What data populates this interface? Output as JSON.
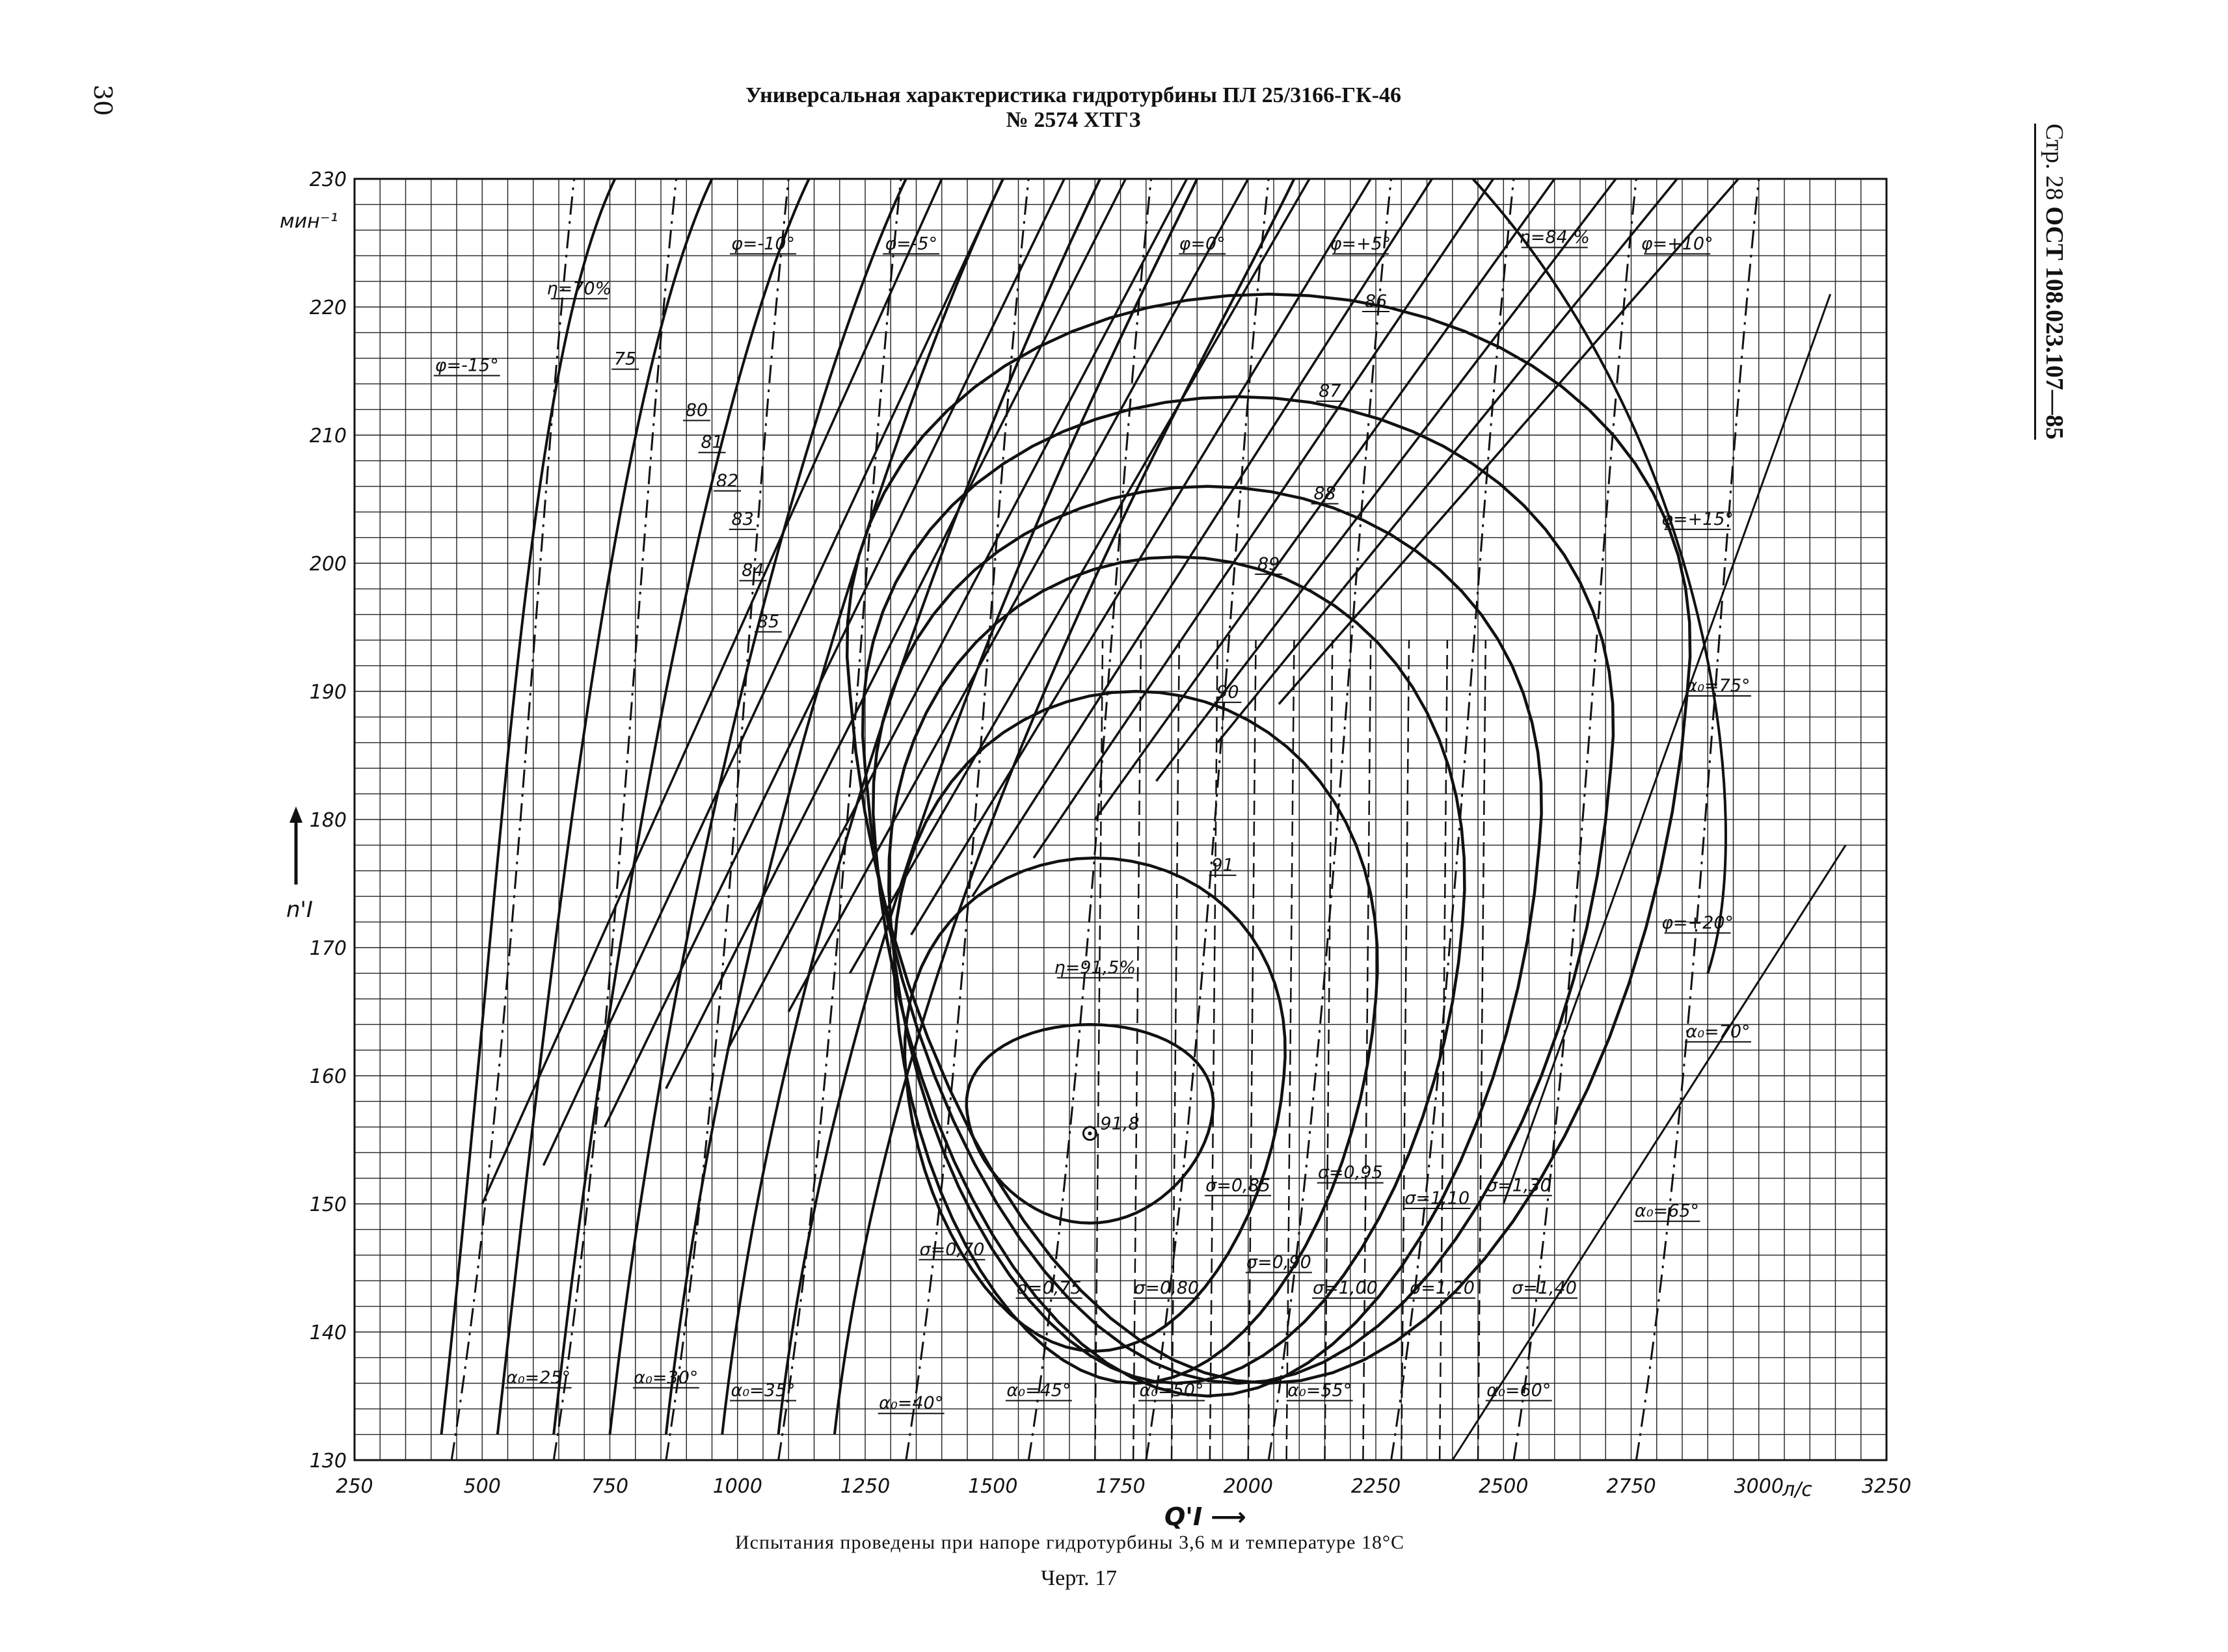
{
  "page_number": "30",
  "title_line1": "Универсальная характеристика гидротурбины ПЛ 25/3166-ГК-46",
  "title_line2": "№ 2574 ХТГЗ",
  "side_label_prefix": "Стр. 28",
  "side_label_standard": "ОСТ 108.023.107—85",
  "footnote": "Испытания проведены при напоре гидротурбины 3,6 м и температуре 18°С",
  "figure_label": "Черт. 17",
  "chart_data": {
    "type": "line",
    "title": "Универсальная характеристика гидротурбины ПЛ 25/3166-ГК-46",
    "xlabel": "Q'I",
    "ylabel": "n'I",
    "yunit": "мин⁻¹",
    "xunit": "л/с",
    "xlim": [
      250,
      3250
    ],
    "ylim": [
      130,
      230
    ],
    "grid": true,
    "x_ticks": [
      {
        "v": 250,
        "t": "250"
      },
      {
        "v": 500,
        "t": "500"
      },
      {
        "v": 750,
        "t": "750"
      },
      {
        "v": 1000,
        "t": "1000"
      },
      {
        "v": 1250,
        "t": "1250"
      },
      {
        "v": 1500,
        "t": "1500"
      },
      {
        "v": 1750,
        "t": "1750"
      },
      {
        "v": 2000,
        "t": "2000"
      },
      {
        "v": 2250,
        "t": "2250"
      },
      {
        "v": 2500,
        "t": "2500"
      },
      {
        "v": 2750,
        "t": "2750"
      },
      {
        "v": 3000,
        "t": "3000"
      },
      {
        "v": 3250,
        "t": "3250"
      }
    ],
    "y_ticks": [
      {
        "v": 130,
        "t": "130"
      },
      {
        "v": 140,
        "t": "140"
      },
      {
        "v": 150,
        "t": "150"
      },
      {
        "v": 160,
        "t": "160"
      },
      {
        "v": 170,
        "t": "170"
      },
      {
        "v": 180,
        "t": "180"
      },
      {
        "v": 190,
        "t": "190"
      },
      {
        "v": 200,
        "t": "200"
      },
      {
        "v": 210,
        "t": "210"
      },
      {
        "v": 220,
        "t": "220"
      },
      {
        "v": 230,
        "t": "230"
      }
    ],
    "optimum_point": {
      "x": 1690,
      "y": 155.5,
      "label": "91,8"
    },
    "efficiency_contours": [
      {
        "label": "η=91,5%",
        "cx": 1690,
        "cy": 157,
        "rx": 240,
        "ryTop": 7,
        "ryBot": 8.5,
        "tag": [
          1700,
          168
        ]
      },
      {
        "label": "91",
        "cx": 1700,
        "cy": 160,
        "rx": 370,
        "ryTop": 17,
        "ryBot": 21.5,
        "tag": [
          1950,
          176
        ]
      },
      {
        "label": "90",
        "cx": 1780,
        "cy": 166,
        "rx": 470,
        "ryTop": 24,
        "ryBot": 30,
        "tag": [
          1960,
          189.5
        ]
      },
      {
        "label": "89",
        "cx": 1860,
        "cy": 172,
        "rx": 560,
        "ryTop": 28.5,
        "ryBot": 36,
        "tag": [
          2040,
          199.5
        ]
      },
      {
        "label": "88",
        "cx": 1920,
        "cy": 178,
        "rx": 650,
        "ryTop": 28,
        "ryBot": 43,
        "tag": [
          2150,
          205
        ]
      },
      {
        "label": "87",
        "cx": 1980,
        "cy": 184,
        "rx": 730,
        "ryTop": 29,
        "ryBot": 48,
        "tag": [
          2160,
          213
        ]
      },
      {
        "label": "86",
        "cx": 2040,
        "cy": 190,
        "rx": 820,
        "ryTop": 31,
        "ryBot": 54,
        "tag": [
          2250,
          220
        ]
      }
    ],
    "efficiency_open": [
      {
        "label": "η=84 %",
        "tag": [
          2600,
          225
        ]
      },
      {
        "label": "85",
        "tag": [
          1060,
          195
        ]
      },
      {
        "label": "84",
        "tag": [
          1030,
          199
        ]
      },
      {
        "label": "83",
        "tag": [
          1010,
          203
        ]
      },
      {
        "label": "82",
        "tag": [
          980,
          206
        ]
      },
      {
        "label": "81",
        "tag": [
          950,
          209
        ]
      },
      {
        "label": "80",
        "tag": [
          920,
          211.5
        ]
      },
      {
        "label": "75",
        "tag": [
          780,
          215.5
        ]
      },
      {
        "label": "η=70%",
        "tag": [
          690,
          221
        ]
      }
    ],
    "blade_angle_lines": [
      {
        "label": "φ=-15°",
        "tag": [
          470,
          215
        ]
      },
      {
        "label": "φ=-10°",
        "tag": [
          1050,
          224.5
        ]
      },
      {
        "label": "φ=-5°",
        "tag": [
          1340,
          224.5
        ]
      },
      {
        "label": "φ=0°",
        "tag": [
          1910,
          224.5
        ]
      },
      {
        "label": "φ=+5°",
        "tag": [
          2220,
          224.5
        ]
      },
      {
        "label": "φ=+10°",
        "tag": [
          2840,
          224.5
        ]
      },
      {
        "label": "φ=+15°",
        "tag": [
          2880,
          203
        ]
      },
      {
        "label": "φ=+20°",
        "tag": [
          2880,
          171.5
        ]
      }
    ],
    "guide_vane_lines": [
      {
        "label": "α₀=25°",
        "x": 560,
        "tag": [
          610,
          136
        ]
      },
      {
        "label": "α₀=30°",
        "x": 760,
        "tag": [
          860,
          136
        ]
      },
      {
        "label": "α₀=35°",
        "x": 980,
        "tag": [
          1050,
          135
        ]
      },
      {
        "label": "α₀=40°",
        "x": 1200,
        "tag": [
          1340,
          134
        ]
      },
      {
        "label": "α₀=45°",
        "x": 1450,
        "tag": [
          1590,
          135
        ]
      },
      {
        "label": "α₀=50°",
        "x": 1690,
        "tag": [
          1850,
          135
        ]
      },
      {
        "label": "α₀=55°",
        "x": 1920,
        "tag": [
          2140,
          135
        ]
      },
      {
        "label": "α₀=60°",
        "x": 2160,
        "tag": [
          2530,
          135
        ]
      },
      {
        "label": "α₀=65°",
        "x": 2400,
        "tag": [
          2820,
          149
        ]
      },
      {
        "label": "α₀=70°",
        "x": 2640,
        "tag": [
          2920,
          163
        ]
      },
      {
        "label": "α₀=75°",
        "x": 2880,
        "tag": [
          2920,
          190
        ]
      }
    ],
    "cavitation_labels": [
      {
        "label": "σ=0,70",
        "tag": [
          1420,
          146
        ]
      },
      {
        "label": "σ=0,75",
        "tag": [
          1610,
          143
        ]
      },
      {
        "label": "σ=0,80",
        "tag": [
          1840,
          143
        ]
      },
      {
        "label": "σ=0,85",
        "tag": [
          1980,
          151
        ]
      },
      {
        "label": "σ=0,90",
        "tag": [
          2060,
          145
        ]
      },
      {
        "label": "σ=0,95",
        "tag": [
          2200,
          152
        ]
      },
      {
        "label": "σ=1,00",
        "tag": [
          2190,
          143
        ]
      },
      {
        "label": "σ=1,10",
        "tag": [
          2370,
          150
        ]
      },
      {
        "label": "σ=1,20",
        "tag": [
          2380,
          143
        ]
      },
      {
        "label": "σ=1,30",
        "tag": [
          2530,
          151
        ]
      },
      {
        "label": "σ=1,40",
        "tag": [
          2580,
          143
        ]
      }
    ]
  }
}
